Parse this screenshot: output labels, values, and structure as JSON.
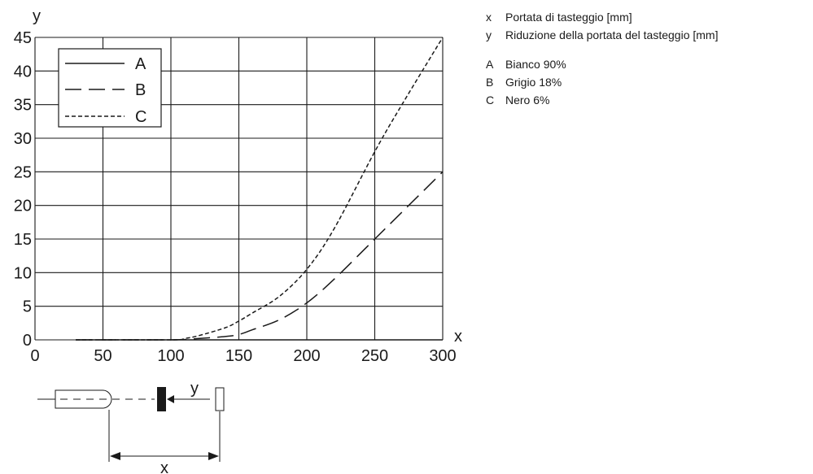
{
  "chart_data": {
    "type": "line",
    "x_axis_letter": "x",
    "y_axis_letter": "y",
    "xlim": [
      0,
      300
    ],
    "ylim": [
      0,
      45
    ],
    "x_ticks": [
      "0",
      "50",
      "100",
      "150",
      "200",
      "250",
      "300"
    ],
    "y_ticks": [
      "0",
      "5",
      "10",
      "15",
      "20",
      "25",
      "30",
      "35",
      "40",
      "45"
    ],
    "grid": true,
    "legend_position": "top-left",
    "series": [
      {
        "name": "A",
        "style": "solid",
        "x": [
          30,
          100,
          200,
          300
        ],
        "y": [
          0,
          0,
          0,
          0
        ]
      },
      {
        "name": "B",
        "style": "dashed",
        "x": [
          30,
          100,
          120,
          140,
          150,
          160,
          180,
          200,
          220,
          250,
          270,
          300
        ],
        "y": [
          0,
          0,
          0.2,
          0.5,
          0.8,
          1.5,
          3.0,
          5.5,
          9.0,
          15.0,
          19.0,
          25.0
        ]
      },
      {
        "name": "C",
        "style": "dotted",
        "x": [
          30,
          100,
          110,
          120,
          140,
          150,
          160,
          180,
          200,
          220,
          250,
          270,
          300
        ],
        "y": [
          0,
          0,
          0.2,
          0.6,
          1.8,
          2.8,
          4.0,
          6.5,
          10.5,
          16.5,
          28.0,
          35.0,
          45.0
        ]
      }
    ]
  },
  "legend_box": [
    {
      "key": "A"
    },
    {
      "key": "B"
    },
    {
      "key": "C"
    }
  ],
  "side_legend": [
    {
      "key": "x",
      "text": "Portata di tasteggio [mm]"
    },
    {
      "key": "y",
      "text": "Riduzione della portata del tasteggio [mm]"
    },
    {
      "key": "A",
      "text": "Bianco 90%"
    },
    {
      "key": "B",
      "text": "Grigio 18%"
    },
    {
      "key": "C",
      "text": "Nero 6%"
    }
  ],
  "diagram": {
    "y_label": "y",
    "x_label": "x"
  },
  "colors": {
    "ink": "#1a1a1a",
    "grid": "#1a1a1a",
    "background": "#ffffff"
  }
}
